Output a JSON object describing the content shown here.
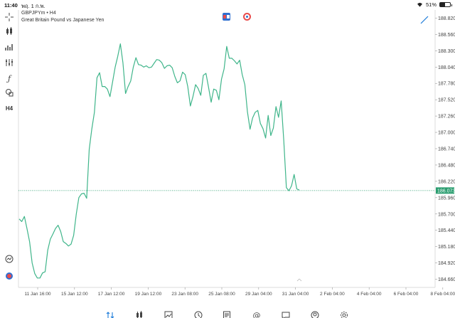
{
  "status": {
    "time": "11:40",
    "date": "พฤ. 1 ก.พ.",
    "battery": "51%",
    "battery_level": 0.51
  },
  "chart_header": {
    "symbol_line": "GBPJPYm • H4",
    "description": "Great Britain Pound vs Japanese Yen"
  },
  "toolbar": [
    {
      "name": "crosshair-icon"
    },
    {
      "name": "candles-icon"
    },
    {
      "name": "indicators-icon"
    },
    {
      "name": "objects-icon"
    },
    {
      "name": "function-icon"
    },
    {
      "name": "shapes-icon"
    },
    {
      "name": "timeframe-label",
      "label": "H4"
    }
  ],
  "chart_data": {
    "type": "line",
    "title": "",
    "xlabel": "",
    "ylabel": "",
    "ylim": [
      184.53,
      188.95
    ],
    "y_ticks": [
      "188.820",
      "188.560",
      "188.300",
      "188.040",
      "187.780",
      "187.520",
      "187.260",
      "187.000",
      "186.740",
      "186.480",
      "186.220",
      "185.960",
      "185.700",
      "185.440",
      "185.180",
      "184.920",
      "184.660"
    ],
    "x_ticks": [
      "11 Jan 16:00",
      "15 Jan 12:00",
      "17 Jan 12:00",
      "19 Jan 12:00",
      "23 Jan 08:00",
      "25 Jan 08:00",
      "29 Jan 04:00",
      "31 Jan 04:00",
      "2 Feb 04:00",
      "4 Feb 04:00",
      "6 Feb 04:00",
      "8 Feb 04:00"
    ],
    "current_price": "186.073",
    "current_price_value": 186.073,
    "line_color": "#3fb58a",
    "price_line_color": "#2a9d6f",
    "series": [
      {
        "values": [
          185.62,
          185.58,
          185.66,
          185.47,
          185.26,
          184.92,
          184.75,
          184.68,
          184.68,
          184.76,
          184.78,
          185.12,
          185.3,
          185.38,
          185.47,
          185.52,
          185.42,
          185.26,
          185.23,
          185.19,
          185.22,
          185.36,
          185.7,
          185.96,
          186.02,
          186.03,
          185.95,
          186.73,
          187.05,
          187.32,
          187.87,
          187.95,
          187.73,
          187.73,
          187.69,
          187.57,
          187.8,
          188.04,
          188.21,
          188.41,
          188.11,
          187.62,
          187.73,
          187.82,
          188.04,
          188.19,
          188.08,
          188.07,
          188.04,
          188.06,
          188.03,
          188.04,
          188.1,
          188.16,
          188.15,
          188.11,
          188.02,
          188.06,
          188.07,
          188.03,
          187.89,
          187.79,
          187.82,
          187.96,
          187.92,
          187.73,
          187.42,
          187.57,
          187.76,
          187.7,
          187.59,
          187.91,
          187.94,
          187.72,
          187.48,
          187.69,
          187.67,
          187.52,
          187.85,
          188.01,
          188.37,
          188.18,
          188.18,
          188.14,
          188.09,
          188.15,
          187.92,
          187.76,
          187.33,
          187.05,
          187.23,
          187.32,
          187.35,
          187.14,
          187.06,
          186.91,
          187.27,
          186.95,
          187.07,
          187.41,
          187.24,
          187.5,
          186.88,
          186.12,
          186.07,
          186.15,
          186.33,
          186.1,
          186.08
        ]
      }
    ]
  },
  "nav": [
    {
      "name": "nav-quotes",
      "icon": "quotes-icon",
      "label": "ราคา",
      "active": true
    },
    {
      "name": "nav-chart",
      "icon": "chart-icon",
      "label": "กราฟ",
      "active": false
    },
    {
      "name": "nav-trade",
      "icon": "trade-icon",
      "label": "การซื้อขาย",
      "active": false
    },
    {
      "name": "nav-history",
      "icon": "history-icon",
      "label": "ประวัติ",
      "active": false
    },
    {
      "name": "nav-news",
      "icon": "news-icon",
      "label": "ข่าว",
      "active": false
    },
    {
      "name": "nav-mailbox",
      "icon": "mailbox-icon",
      "label": "กล่องจดหมาย",
      "active": false
    },
    {
      "name": "nav-chat",
      "icon": "chat-icon",
      "label": "แชท",
      "active": false
    },
    {
      "name": "nav-account",
      "icon": "account-icon",
      "label": "บัญชี",
      "active": false
    },
    {
      "name": "nav-settings",
      "icon": "settings-icon",
      "label": "การตั้งค่า",
      "active": false
    }
  ]
}
